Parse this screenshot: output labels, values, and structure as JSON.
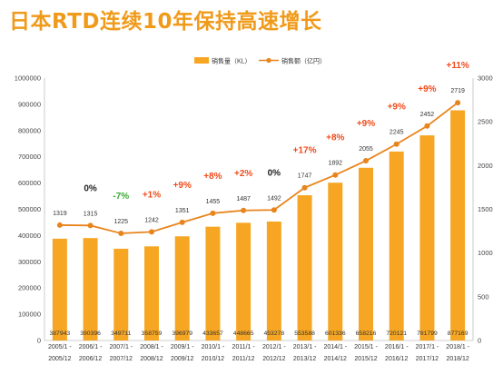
{
  "title": "日本RTD连续10年保持高速增长",
  "colors": {
    "bar": "#f6a623",
    "line": "#e8841c",
    "increase": "#f04a1a",
    "decrease": "#3aa935",
    "zero": "#222222"
  },
  "chart_data": {
    "type": "bar",
    "categories": [
      [
        "2005/1 -",
        "2005/12"
      ],
      [
        "2006/1 -",
        "2006/12"
      ],
      [
        "2007/1 -",
        "2007/12"
      ],
      [
        "2008/1 -",
        "2008/12"
      ],
      [
        "2009/1 -",
        "2009/12"
      ],
      [
        "2010/1 -",
        "2010/12"
      ],
      [
        "2011/1 -",
        "2011/12"
      ],
      [
        "2012/1 -",
        "2012/12"
      ],
      [
        "2013/1 -",
        "2013/12"
      ],
      [
        "2014/1 -",
        "2014/12"
      ],
      [
        "2015/1 -",
        "2015/12"
      ],
      [
        "2016/1 -",
        "2016/12"
      ],
      [
        "2017/1 -",
        "2017/12"
      ],
      [
        "2018/1 -",
        "2018/12"
      ]
    ],
    "series": [
      {
        "name": "销售量（KL）",
        "type": "bar",
        "axis": "left",
        "values": [
          387943,
          390396,
          349711,
          358759,
          396979,
          433657,
          448665,
          453278,
          553588,
          601336,
          658216,
          720121,
          781799,
          877169
        ]
      },
      {
        "name": "销售额（亿円）",
        "type": "line",
        "axis": "right",
        "values": [
          1319,
          1315,
          1225,
          1242,
          1351,
          1455,
          1487,
          1492,
          1747,
          1892,
          2055,
          2245,
          2452,
          2719
        ]
      }
    ],
    "growth_labels": [
      "",
      "0%",
      "-7%",
      "+1%",
      "+9%",
      "+8%",
      "+2%",
      "0%",
      "+17%",
      "+8%",
      "+9%",
      "+9%",
      "+9%",
      "+11%"
    ],
    "left_axis": {
      "ylim": [
        0,
        1000000
      ],
      "ticks": [
        "0",
        "100000",
        "200000",
        "300000",
        "400000",
        "500000",
        "600000",
        "700000",
        "800000",
        "900000",
        "1000000"
      ]
    },
    "right_axis": {
      "ylim": [
        0,
        3000
      ],
      "ticks": [
        "0",
        "500",
        "1000",
        "1500",
        "2000",
        "2500",
        "3000"
      ]
    },
    "legend_position": "top-center",
    "grid": false
  }
}
